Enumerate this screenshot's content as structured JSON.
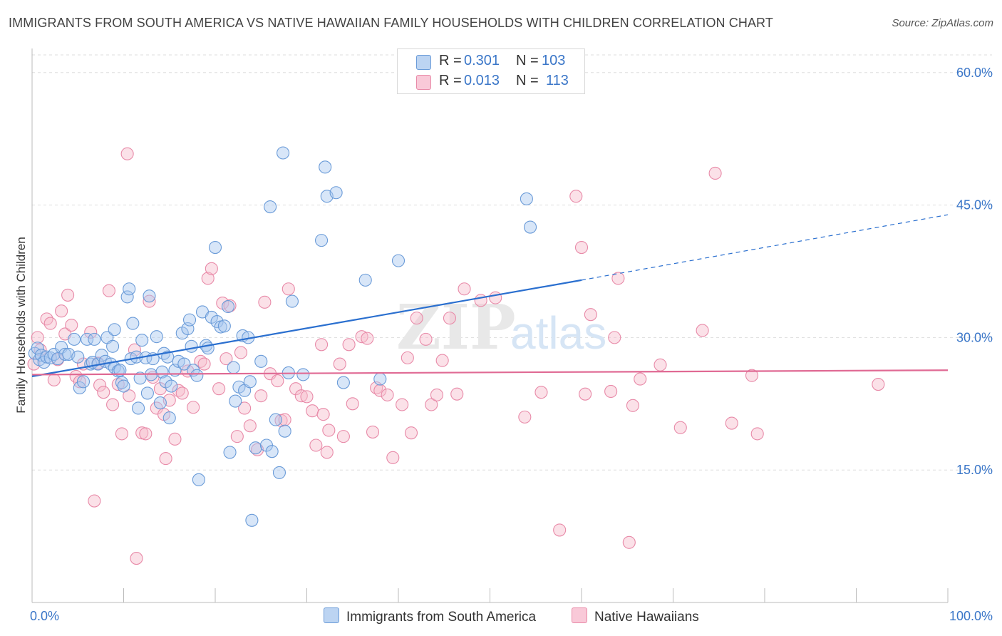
{
  "title": "IMMIGRANTS FROM SOUTH AMERICA VS NATIVE HAWAIIAN FAMILY HOUSEHOLDS WITH CHILDREN CORRELATION CHART",
  "source": "Source: ZipAtlas.com",
  "watermark": {
    "zip": "ZIP",
    "atlas": "atlas"
  },
  "legend": {
    "r_label": "R =",
    "n_label": "N =",
    "series": [
      {
        "r": "0.301",
        "n": "103"
      },
      {
        "r": "0.013",
        "n": "113"
      }
    ]
  },
  "colors": {
    "blue_fill": "#a8c8f0",
    "blue_stroke": "#6a9bd8",
    "blue_line": "#2a6fcf",
    "pink_fill": "#f6bccd",
    "pink_stroke": "#e88aa8",
    "pink_line": "#e06a94",
    "axis_text": "#3a76c8",
    "grid": "#dddddd"
  },
  "chart_data": {
    "type": "scatter",
    "title": "IMMIGRANTS FROM SOUTH AMERICA VS NATIVE HAWAIIAN FAMILY HOUSEHOLDS WITH CHILDREN CORRELATION CHART",
    "xlabel": "",
    "ylabel": "Family Households with Children",
    "xlim": [
      0,
      100
    ],
    "ylim": [
      0,
      62
    ],
    "x_tick_labels": [
      "0.0%",
      "100.0%"
    ],
    "y_ticks": [
      15,
      30,
      45,
      60
    ],
    "y_tick_labels": [
      "15.0%",
      "30.0%",
      "45.0%",
      "60.0%"
    ],
    "grid": true,
    "legend_position": "top-center",
    "series": [
      {
        "name": "Immigrants from South America",
        "color": "#a8c8f0",
        "trend": {
          "x": [
            0,
            60
          ],
          "y": [
            25.6,
            36.5
          ],
          "dashed_to": [
            100,
            43.9
          ]
        },
        "points": [
          [
            0.3,
            28.2
          ],
          [
            0.6,
            28.8
          ],
          [
            0.8,
            27.5
          ],
          [
            1.0,
            28.0
          ],
          [
            1.3,
            27.2
          ],
          [
            1.6,
            27.8
          ],
          [
            2.0,
            27.7
          ],
          [
            2.4,
            28.1
          ],
          [
            2.8,
            27.6
          ],
          [
            3.2,
            28.9
          ],
          [
            3.6,
            28.1
          ],
          [
            4.0,
            28.1
          ],
          [
            4.6,
            29.8
          ],
          [
            5.0,
            27.8
          ],
          [
            5.2,
            24.3
          ],
          [
            5.6,
            25.0
          ],
          [
            6.0,
            29.8
          ],
          [
            6.4,
            27.0
          ],
          [
            6.6,
            27.2
          ],
          [
            6.8,
            29.8
          ],
          [
            7.2,
            27.0
          ],
          [
            7.6,
            28.0
          ],
          [
            8.0,
            27.3
          ],
          [
            8.2,
            30.0
          ],
          [
            8.6,
            27.0
          ],
          [
            8.8,
            29.0
          ],
          [
            9.0,
            26.6
          ],
          [
            9.4,
            26.2
          ],
          [
            9.0,
            30.9
          ],
          [
            9.6,
            26.3
          ],
          [
            9.8,
            24.9
          ],
          [
            10.0,
            24.5
          ],
          [
            10.4,
            34.6
          ],
          [
            10.6,
            35.5
          ],
          [
            10.8,
            27.6
          ],
          [
            11.0,
            31.6
          ],
          [
            11.4,
            27.8
          ],
          [
            11.6,
            22.0
          ],
          [
            11.8,
            25.4
          ],
          [
            12.0,
            29.7
          ],
          [
            12.4,
            27.7
          ],
          [
            12.6,
            23.7
          ],
          [
            12.8,
            34.7
          ],
          [
            13.0,
            25.8
          ],
          [
            13.2,
            27.6
          ],
          [
            13.6,
            30.1
          ],
          [
            14.0,
            22.6
          ],
          [
            14.2,
            26.1
          ],
          [
            14.4,
            28.2
          ],
          [
            14.6,
            25.0
          ],
          [
            14.8,
            27.8
          ],
          [
            15.0,
            20.9
          ],
          [
            15.2,
            24.5
          ],
          [
            15.6,
            26.3
          ],
          [
            16.0,
            27.3
          ],
          [
            16.4,
            30.5
          ],
          [
            16.6,
            27.0
          ],
          [
            17.0,
            31.0
          ],
          [
            17.2,
            32.0
          ],
          [
            17.4,
            29.0
          ],
          [
            17.6,
            26.3
          ],
          [
            18.0,
            25.7
          ],
          [
            18.2,
            13.9
          ],
          [
            18.6,
            32.9
          ],
          [
            19.0,
            29.1
          ],
          [
            19.2,
            28.8
          ],
          [
            19.6,
            32.3
          ],
          [
            20.0,
            40.2
          ],
          [
            20.2,
            31.8
          ],
          [
            20.6,
            31.2
          ],
          [
            21.0,
            31.3
          ],
          [
            21.4,
            33.5
          ],
          [
            21.6,
            17.0
          ],
          [
            22.0,
            26.6
          ],
          [
            22.2,
            22.8
          ],
          [
            22.6,
            24.4
          ],
          [
            23.0,
            30.2
          ],
          [
            23.2,
            24.0
          ],
          [
            23.6,
            30.0
          ],
          [
            23.8,
            25.0
          ],
          [
            24.0,
            9.3
          ],
          [
            24.4,
            17.5
          ],
          [
            25.0,
            27.3
          ],
          [
            25.6,
            17.8
          ],
          [
            26.0,
            44.8
          ],
          [
            26.2,
            17.1
          ],
          [
            26.6,
            20.7
          ],
          [
            27.0,
            14.7
          ],
          [
            27.4,
            50.9
          ],
          [
            27.6,
            19.4
          ],
          [
            28.0,
            26.0
          ],
          [
            28.4,
            34.1
          ],
          [
            29.6,
            25.8
          ],
          [
            31.6,
            41.0
          ],
          [
            32.0,
            49.3
          ],
          [
            32.2,
            46.0
          ],
          [
            33.2,
            46.4
          ],
          [
            34.0,
            24.9
          ],
          [
            36.4,
            36.5
          ],
          [
            38.0,
            25.3
          ],
          [
            40.0,
            38.7
          ],
          [
            54.0,
            45.7
          ],
          [
            54.4,
            42.5
          ]
        ]
      },
      {
        "name": "Native Hawaiians",
        "color": "#f6bccd",
        "trend": {
          "x": [
            0,
            100
          ],
          "y": [
            25.8,
            26.3
          ]
        },
        "points": [
          [
            0.2,
            27.0
          ],
          [
            0.6,
            30.0
          ],
          [
            0.9,
            28.6
          ],
          [
            1.6,
            32.1
          ],
          [
            2.0,
            31.6
          ],
          [
            2.4,
            25.2
          ],
          [
            2.8,
            27.5
          ],
          [
            3.2,
            33.0
          ],
          [
            3.6,
            30.4
          ],
          [
            3.9,
            34.8
          ],
          [
            4.3,
            31.4
          ],
          [
            4.8,
            25.6
          ],
          [
            5.2,
            25.0
          ],
          [
            5.6,
            27.0
          ],
          [
            6.4,
            30.6
          ],
          [
            6.8,
            11.5
          ],
          [
            7.2,
            27.1
          ],
          [
            7.4,
            24.6
          ],
          [
            7.8,
            23.8
          ],
          [
            8.4,
            35.3
          ],
          [
            8.8,
            22.4
          ],
          [
            9.4,
            24.7
          ],
          [
            9.8,
            19.1
          ],
          [
            10.4,
            50.8
          ],
          [
            10.6,
            23.4
          ],
          [
            11.2,
            28.6
          ],
          [
            11.4,
            5.0
          ],
          [
            12.0,
            19.2
          ],
          [
            12.4,
            19.1
          ],
          [
            12.8,
            34.1
          ],
          [
            13.2,
            25.5
          ],
          [
            13.6,
            22.0
          ],
          [
            14.0,
            24.2
          ],
          [
            14.4,
            21.3
          ],
          [
            14.6,
            16.3
          ],
          [
            15.0,
            22.9
          ],
          [
            15.6,
            18.5
          ],
          [
            16.0,
            24.0
          ],
          [
            16.4,
            23.7
          ],
          [
            17.0,
            26.2
          ],
          [
            17.6,
            22.1
          ],
          [
            18.4,
            27.3
          ],
          [
            18.8,
            27.0
          ],
          [
            19.2,
            36.7
          ],
          [
            19.6,
            37.8
          ],
          [
            20.4,
            24.2
          ],
          [
            20.8,
            33.9
          ],
          [
            21.2,
            27.6
          ],
          [
            21.6,
            33.6
          ],
          [
            22.4,
            18.8
          ],
          [
            22.8,
            28.3
          ],
          [
            23.2,
            22.0
          ],
          [
            23.8,
            20.0
          ],
          [
            24.6,
            17.3
          ],
          [
            25.0,
            23.4
          ],
          [
            25.4,
            34.0
          ],
          [
            26.0,
            25.9
          ],
          [
            26.8,
            25.1
          ],
          [
            27.2,
            20.6
          ],
          [
            27.6,
            20.7
          ],
          [
            28.0,
            35.5
          ],
          [
            28.8,
            24.2
          ],
          [
            29.4,
            23.4
          ],
          [
            30.0,
            23.3
          ],
          [
            30.6,
            21.7
          ],
          [
            31.0,
            17.8
          ],
          [
            31.6,
            29.2
          ],
          [
            31.8,
            21.3
          ],
          [
            32.2,
            17.0
          ],
          [
            32.4,
            19.5
          ],
          [
            33.6,
            27.0
          ],
          [
            34.0,
            18.8
          ],
          [
            34.6,
            29.2
          ],
          [
            35.0,
            22.5
          ],
          [
            36.0,
            30.1
          ],
          [
            36.6,
            29.9
          ],
          [
            37.2,
            19.3
          ],
          [
            37.6,
            24.3
          ],
          [
            38.0,
            24.0
          ],
          [
            38.8,
            23.5
          ],
          [
            39.4,
            16.4
          ],
          [
            40.4,
            22.4
          ],
          [
            41.0,
            27.7
          ],
          [
            41.4,
            19.2
          ],
          [
            42.0,
            32.2
          ],
          [
            43.0,
            29.8
          ],
          [
            43.6,
            22.4
          ],
          [
            44.2,
            23.5
          ],
          [
            44.8,
            27.4
          ],
          [
            45.6,
            32.2
          ],
          [
            46.4,
            23.6
          ],
          [
            47.2,
            35.5
          ],
          [
            49.0,
            34.2
          ],
          [
            50.6,
            34.5
          ],
          [
            53.8,
            21.0
          ],
          [
            55.6,
            23.8
          ],
          [
            57.6,
            8.2
          ],
          [
            59.4,
            46.0
          ],
          [
            60.0,
            40.2
          ],
          [
            60.4,
            23.6
          ],
          [
            61.0,
            32.6
          ],
          [
            63.2,
            23.9
          ],
          [
            63.6,
            30.0
          ],
          [
            64.0,
            36.7
          ],
          [
            65.2,
            6.8
          ],
          [
            65.6,
            22.3
          ],
          [
            66.4,
            25.3
          ],
          [
            68.6,
            26.9
          ],
          [
            70.8,
            19.8
          ],
          [
            73.2,
            30.8
          ],
          [
            74.6,
            48.6
          ],
          [
            76.4,
            20.3
          ],
          [
            78.6,
            25.7
          ],
          [
            79.2,
            19.1
          ],
          [
            92.4,
            24.7
          ]
        ]
      }
    ]
  },
  "bottom_legend": [
    "Immigrants from South America",
    "Native Hawaiians"
  ]
}
